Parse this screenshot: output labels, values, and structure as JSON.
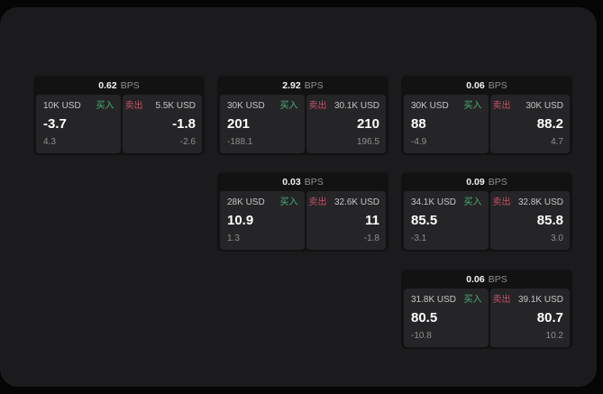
{
  "labels": {
    "buy": "买入",
    "sell": "卖出",
    "bps_unit": "BPS"
  },
  "colors": {
    "buy": "#4cae78",
    "sell": "#c75067"
  },
  "cards": [
    {
      "col": 0,
      "row": 0,
      "bps": "0.62",
      "buy": {
        "amount": "10K USD",
        "value": "-3.7",
        "delta": "4.3"
      },
      "sell": {
        "amount": "5.5K USD",
        "value": "-1.8",
        "delta": "-2.6"
      }
    },
    {
      "col": 1,
      "row": 0,
      "bps": "2.92",
      "buy": {
        "amount": "30K USD",
        "value": "201",
        "delta": "-188.1"
      },
      "sell": {
        "amount": "30.1K USD",
        "value": "210",
        "delta": "196.5"
      }
    },
    {
      "col": 2,
      "row": 0,
      "bps": "0.06",
      "buy": {
        "amount": "30K USD",
        "value": "88",
        "delta": "-4.9"
      },
      "sell": {
        "amount": "30K USD",
        "value": "88.2",
        "delta": "4.7"
      }
    },
    {
      "col": 1,
      "row": 1,
      "bps": "0.03",
      "buy": {
        "amount": "28K USD",
        "value": "10.9",
        "delta": "1.3"
      },
      "sell": {
        "amount": "32.6K USD",
        "value": "11",
        "delta": "-1.8"
      }
    },
    {
      "col": 2,
      "row": 1,
      "bps": "0.09",
      "buy": {
        "amount": "34.1K USD",
        "value": "85.5",
        "delta": "-3.1"
      },
      "sell": {
        "amount": "32.8K USD",
        "value": "85.8",
        "delta": "3.0"
      }
    },
    {
      "col": 2,
      "row": 2,
      "bps": "0.06",
      "buy": {
        "amount": "31.8K USD",
        "value": "80.5",
        "delta": "-10.8"
      },
      "sell": {
        "amount": "39.1K USD",
        "value": "80.7",
        "delta": "10.2"
      }
    }
  ]
}
